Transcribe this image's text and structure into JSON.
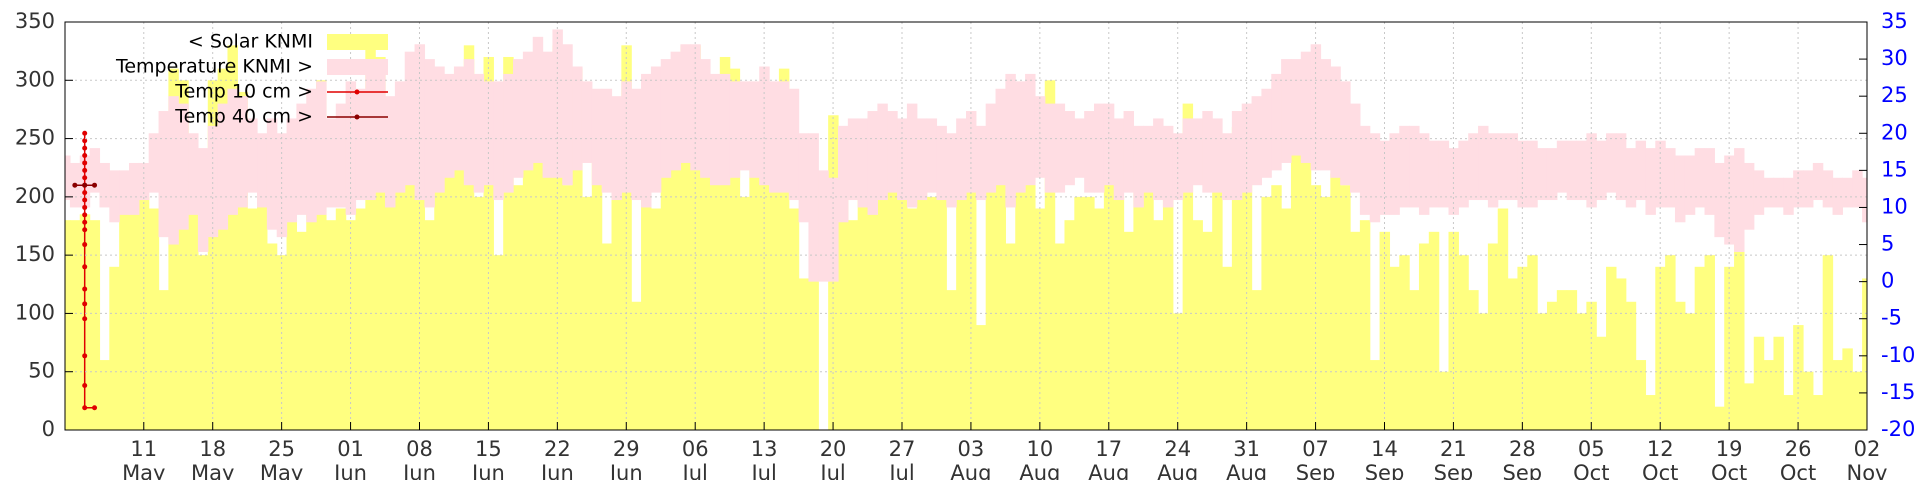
{
  "chart_data": {
    "type": "combo",
    "x": [
      "03 May",
      "04 May",
      "05 May",
      "06 May",
      "07 May",
      "08 May",
      "09 May",
      "10 May",
      "11 May",
      "12 May",
      "13 May",
      "14 May",
      "15 May",
      "16 May",
      "17 May",
      "18 May",
      "19 May",
      "20 May",
      "21 May",
      "22 May",
      "23 May",
      "24 May",
      "25 May",
      "26 May",
      "27 May",
      "28 May",
      "29 May",
      "30 May",
      "31 May",
      "01 Jun",
      "02 Jun",
      "03 Jun",
      "04 Jun",
      "05 Jun",
      "06 Jun",
      "07 Jun",
      "08 Jun",
      "09 Jun",
      "10 Jun",
      "11 Jun",
      "12 Jun",
      "13 Jun",
      "14 Jun",
      "15 Jun",
      "16 Jun",
      "17 Jun",
      "18 Jun",
      "19 Jun",
      "20 Jun",
      "21 Jun",
      "22 Jun",
      "23 Jun",
      "24 Jun",
      "25 Jun",
      "26 Jun",
      "27 Jun",
      "28 Jun",
      "29 Jun",
      "30 Jun",
      "01 Jul",
      "02 Jul",
      "03 Jul",
      "04 Jul",
      "05 Jul",
      "06 Jul",
      "07 Jul",
      "08 Jul",
      "09 Jul",
      "10 Jul",
      "11 Jul",
      "12 Jul",
      "13 Jul",
      "14 Jul",
      "15 Jul",
      "16 Jul",
      "17 Jul",
      "18 Jul",
      "19 Jul",
      "20 Jul",
      "21 Jul",
      "22 Jul",
      "23 Jul",
      "24 Jul",
      "25 Jul",
      "26 Jul",
      "27 Jul",
      "28 Jul",
      "29 Jul",
      "30 Jul",
      "31 Jul",
      "01 Aug",
      "02 Aug",
      "03 Aug",
      "04 Aug",
      "05 Aug",
      "06 Aug",
      "07 Aug",
      "08 Aug",
      "09 Aug",
      "10 Aug",
      "11 Aug",
      "12 Aug",
      "13 Aug",
      "14 Aug",
      "15 Aug",
      "16 Aug",
      "17 Aug",
      "18 Aug",
      "19 Aug",
      "20 Aug",
      "21 Aug",
      "22 Aug",
      "23 Aug",
      "24 Aug",
      "25 Aug",
      "26 Aug",
      "27 Aug",
      "28 Aug",
      "29 Aug",
      "30 Aug",
      "31 Aug",
      "01 Sep",
      "02 Sep",
      "03 Sep",
      "04 Sep",
      "05 Sep",
      "06 Sep",
      "07 Sep",
      "08 Sep",
      "09 Sep",
      "10 Sep",
      "11 Sep",
      "12 Sep",
      "13 Sep",
      "14 Sep",
      "15 Sep",
      "16 Sep",
      "17 Sep",
      "18 Sep",
      "19 Sep",
      "20 Sep",
      "21 Sep",
      "22 Sep",
      "23 Sep",
      "24 Sep",
      "25 Sep",
      "26 Sep",
      "27 Sep",
      "28 Sep",
      "29 Sep",
      "30 Sep",
      "01 Oct",
      "02 Oct",
      "03 Oct",
      "04 Oct",
      "05 Oct",
      "06 Oct",
      "07 Oct",
      "08 Oct",
      "09 Oct",
      "10 Oct",
      "11 Oct",
      "12 Oct",
      "13 Oct",
      "14 Oct",
      "15 Oct",
      "16 Oct",
      "17 Oct",
      "18 Oct",
      "19 Oct",
      "20 Oct",
      "21 Oct",
      "22 Oct",
      "23 Oct",
      "24 Oct",
      "25 Oct",
      "26 Oct",
      "27 Oct",
      "28 Oct",
      "29 Oct",
      "30 Oct",
      "31 Oct",
      "01 Nov",
      "02 Nov"
    ],
    "series": [
      {
        "name": "< Solar KNMI",
        "type": "bar",
        "color": "#ffff80",
        "values": [
          180,
          180,
          185,
          180,
          60,
          140,
          190,
          195,
          200,
          190,
          120,
          310,
          300,
          200,
          150,
          300,
          310,
          330,
          290,
          190,
          240,
          160,
          150,
          250,
          170,
          240,
          300,
          180,
          190,
          180,
          190,
          330,
          320,
          200,
          230,
          270,
          240,
          180,
          220,
          240,
          310,
          330,
          200,
          320,
          150,
          320,
          210,
          230,
          320,
          220,
          330,
          210,
          310,
          200,
          230,
          160,
          230,
          330,
          110,
          230,
          190,
          280,
          300,
          330,
          330,
          230,
          220,
          320,
          310,
          200,
          240,
          230,
          220,
          310,
          190,
          130,
          130,
          0,
          270,
          260,
          180,
          200,
          270,
          230,
          240,
          200,
          190,
          250,
          200,
          210,
          120,
          210,
          230,
          90,
          220,
          250,
          160,
          270,
          230,
          190,
          300,
          160,
          180,
          200,
          200,
          190,
          250,
          200,
          170,
          220,
          210,
          180,
          210,
          100,
          280,
          180,
          170,
          220,
          140,
          260,
          230,
          120,
          200,
          210,
          190,
          240,
          230,
          210,
          200,
          220,
          210,
          170,
          180,
          60,
          170,
          140,
          150,
          120,
          160,
          170,
          50,
          170,
          150,
          120,
          100,
          160,
          190,
          130,
          140,
          150,
          100,
          110,
          120,
          120,
          100,
          110,
          80,
          140,
          130,
          110,
          60,
          30,
          140,
          150,
          110,
          100,
          140,
          150,
          20,
          140,
          170,
          40,
          80,
          60,
          80,
          30,
          90,
          50,
          30,
          150,
          60,
          70,
          50,
          130
        ]
      },
      {
        "name": "Temperature KNMI >",
        "type": "band",
        "axis": "y2",
        "color": "#ffdde3",
        "low": [
          11,
          10,
          10,
          12,
          10,
          8,
          9,
          9,
          11,
          12,
          6,
          5,
          7,
          9,
          4,
          6,
          7,
          9,
          10,
          12,
          10,
          7,
          6,
          8,
          9,
          8,
          9,
          10,
          10,
          9,
          11,
          11,
          12,
          10,
          12,
          13,
          11,
          10,
          12,
          14,
          15,
          13,
          12,
          13,
          11,
          12,
          14,
          15,
          16,
          14,
          14,
          13,
          15,
          16,
          13,
          12,
          11,
          12,
          11,
          10,
          12,
          14,
          15,
          16,
          15,
          14,
          13,
          13,
          14,
          15,
          14,
          13,
          12,
          12,
          11,
          8,
          0,
          0,
          0,
          8,
          11,
          10,
          9,
          11,
          12,
          11,
          10,
          11,
          12,
          11,
          10,
          11,
          12,
          11,
          12,
          13,
          10,
          12,
          13,
          14,
          12,
          12,
          13,
          14,
          12,
          12,
          13,
          11,
          12,
          10,
          12,
          11,
          10,
          11,
          12,
          13,
          12,
          12,
          11,
          11,
          12,
          13,
          14,
          15,
          16,
          17,
          16,
          15,
          15,
          14,
          13,
          12,
          9,
          8,
          9,
          9,
          10,
          10,
          9,
          10,
          10,
          9,
          10,
          11,
          11,
          10,
          11,
          11,
          10,
          10,
          11,
          11,
          12,
          11,
          11,
          10,
          11,
          12,
          11,
          10,
          11,
          9,
          10,
          10,
          8,
          9,
          10,
          9,
          6,
          5,
          4,
          7,
          9,
          10,
          10,
          9,
          10,
          10,
          11,
          10,
          9,
          10,
          10,
          8
        ],
        "high": [
          17,
          16,
          17,
          18,
          16,
          15,
          15,
          16,
          16,
          20,
          23,
          25,
          24,
          20,
          18,
          21,
          24,
          26,
          25,
          22,
          20,
          22,
          20,
          22,
          24,
          26,
          27,
          22,
          24,
          27,
          26,
          28,
          29,
          25,
          27,
          31,
          32,
          30,
          29,
          28,
          29,
          30,
          28,
          27,
          27,
          28,
          30,
          31,
          33,
          31,
          34,
          32,
          29,
          27,
          26,
          26,
          25,
          27,
          26,
          28,
          29,
          30,
          31,
          32,
          32,
          30,
          28,
          28,
          27,
          27,
          27,
          29,
          27,
          27,
          26,
          20,
          20,
          15,
          14,
          21,
          22,
          22,
          23,
          24,
          23,
          22,
          24,
          22,
          22,
          21,
          20,
          22,
          23,
          21,
          24,
          26,
          28,
          27,
          28,
          25,
          24,
          24,
          23,
          22,
          23,
          24,
          24,
          22,
          23,
          21,
          21,
          22,
          21,
          20,
          22,
          22,
          23,
          22,
          20,
          23,
          24,
          25,
          26,
          28,
          30,
          30,
          31,
          32,
          30,
          29,
          27,
          24,
          21,
          20,
          19,
          20,
          21,
          21,
          20,
          19,
          19,
          18,
          19,
          20,
          21,
          20,
          20,
          20,
          19,
          19,
          18,
          18,
          19,
          19,
          19,
          20,
          19,
          20,
          20,
          18,
          19,
          18,
          19,
          18,
          17,
          17,
          18,
          18,
          16,
          17,
          18,
          16,
          15,
          14,
          14,
          14,
          15,
          15,
          16,
          15,
          14,
          14,
          15,
          14
        ]
      },
      {
        "name": "Temp 10 cm >",
        "type": "line",
        "axis": "y2",
        "color": "#e00000",
        "x": [
          "06 May",
          "05 May",
          "05 May",
          "05 May",
          "05 May",
          "05 May",
          "05 May",
          "05 May",
          "05 May",
          "05 May",
          "05 May",
          "05 May",
          "05 May",
          "05 May",
          "05 May",
          "05 May",
          "05 May",
          "05 May",
          "05 May",
          "05 May",
          "05 May",
          "05 May",
          "05 May"
        ],
        "values": [
          -17,
          -17,
          -14,
          -10,
          -5,
          -3,
          -1,
          2,
          5,
          7,
          8,
          9,
          10,
          11,
          12,
          13,
          14,
          15,
          16,
          17,
          18,
          19,
          20
        ]
      },
      {
        "name": "Temp 40 cm >",
        "type": "line",
        "axis": "y2",
        "color": "#8b0000",
        "x": [
          "04 May",
          "05 May",
          "06 May"
        ],
        "values": [
          13,
          13,
          13
        ]
      }
    ],
    "xlim": [
      "03 May",
      "02 Nov"
    ],
    "xticks": [
      "11 May",
      "18 May",
      "25 May",
      "01 Jun",
      "08 Jun",
      "15 Jun",
      "22 Jun",
      "29 Jun",
      "06 Jul",
      "13 Jul",
      "20 Jul",
      "27 Jul",
      "03 Aug",
      "10 Aug",
      "17 Aug",
      "24 Aug",
      "31 Aug",
      "07 Sep",
      "14 Sep",
      "21 Sep",
      "28 Sep",
      "05 Oct",
      "12 Oct",
      "19 Oct",
      "26 Oct",
      "02 Nov"
    ],
    "ylim": [
      0,
      350
    ],
    "yticks": [
      0,
      50,
      100,
      150,
      200,
      250,
      300,
      350
    ],
    "y2lim": [
      -20,
      35
    ],
    "y2ticks": [
      -20,
      -15,
      -10,
      -5,
      0,
      5,
      10,
      15,
      20,
      25,
      30,
      35
    ],
    "grid": true,
    "legend": "top-left"
  }
}
